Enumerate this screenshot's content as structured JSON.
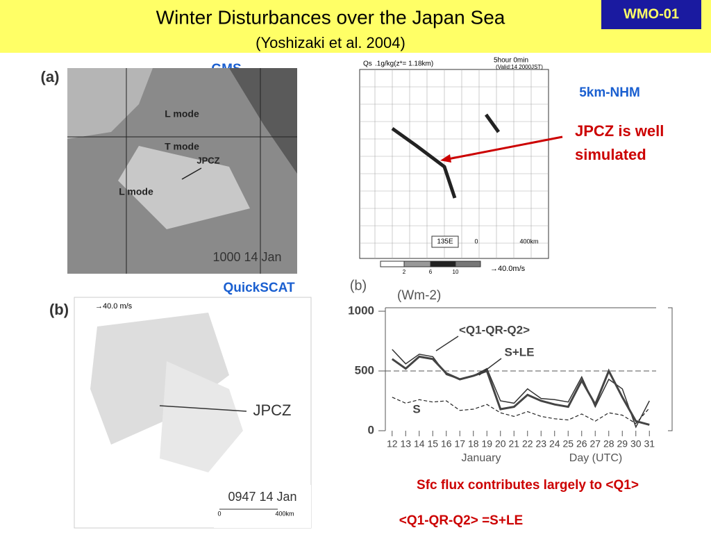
{
  "header": {
    "title": "Winter Disturbances over the Japan Sea",
    "subtitle": "(Yoshizaki et al. 2004)",
    "badge": "WMO-01"
  },
  "gms": {
    "heading": "GMS",
    "panel_label": "(a)",
    "labels": [
      "L mode",
      "T mode",
      "JPCZ",
      "L mode"
    ],
    "timestamp": "1000 14 Jan"
  },
  "nhm": {
    "heading": "5km-NHM",
    "field": "Qs",
    "level": ".1g/kg(z*= 1.18km)",
    "time": "5hour  0min",
    "valid": "(Valid:14 2000JST)",
    "longitude": "135E",
    "scale_start": "0",
    "scale_end": "400km",
    "colorbar": [
      "2",
      "6",
      "10"
    ],
    "wind_scale": "→40.0m/s"
  },
  "annotation": {
    "lines": [
      "JPCZ is well",
      "simulated"
    ]
  },
  "quickscat": {
    "heading": "QuickSCAT",
    "panel_label": "(b)",
    "wind_scale": "→40.0 m/s",
    "jpcz": "JPCZ",
    "timestamp": "0947 14 Jan",
    "scale_start": "0",
    "scale_end": "400km"
  },
  "chart_data": {
    "type": "line",
    "panel_label": "(b)",
    "unit": "(Wm-2)",
    "x_label_month": "January",
    "x_label": "Day (UTC)",
    "categories": [
      "12",
      "13",
      "14",
      "15",
      "16",
      "17",
      "18",
      "19",
      "20",
      "21",
      "22",
      "23",
      "24",
      "25",
      "26",
      "27",
      "28",
      "29",
      "30",
      "31"
    ],
    "ylim": [
      0,
      1000
    ],
    "yticks": [
      0,
      500,
      1000
    ],
    "series": [
      {
        "name": "<Q1-QR-Q2>",
        "color": "#333333",
        "values": [
          680,
          560,
          640,
          620,
          470,
          430,
          460,
          520,
          250,
          230,
          350,
          270,
          260,
          240,
          450,
          200,
          430,
          350,
          30,
          250
        ]
      },
      {
        "name": "S+LE",
        "color": "#444444",
        "values": [
          600,
          520,
          620,
          600,
          480,
          430,
          460,
          500,
          180,
          200,
          300,
          250,
          220,
          200,
          420,
          220,
          500,
          280,
          80,
          50
        ]
      },
      {
        "name": "S",
        "color": "#222222",
        "values": [
          280,
          230,
          260,
          240,
          250,
          170,
          180,
          220,
          150,
          120,
          160,
          120,
          100,
          90,
          140,
          80,
          150,
          130,
          60,
          190
        ]
      }
    ]
  },
  "footer": {
    "lines": [
      "Sfc flux contributes largely to <Q1>",
      "<Q1-QR-Q2> =S+LE"
    ]
  }
}
